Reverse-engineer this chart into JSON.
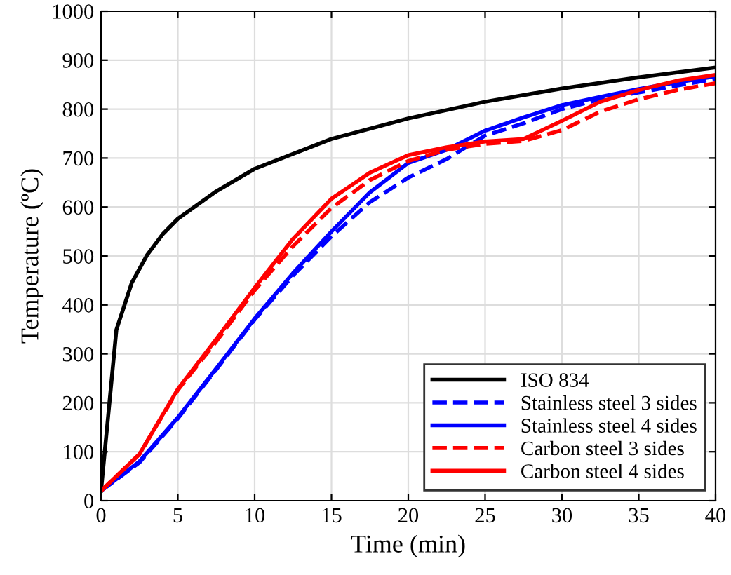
{
  "chart_data": {
    "type": "line",
    "xlabel": "Time (min)",
    "ylabel": "Temperature (ºC)",
    "xlim": [
      0,
      40
    ],
    "ylim": [
      0,
      1000
    ],
    "xticks": [
      0,
      5,
      10,
      15,
      20,
      25,
      30,
      35,
      40
    ],
    "yticks": [
      0,
      100,
      200,
      300,
      400,
      500,
      600,
      700,
      800,
      900,
      1000
    ],
    "grid": true,
    "legend": "bottom right",
    "marker": "none",
    "series": [
      {
        "name": "ISO 834",
        "color": "#000000",
        "line_style": "solid",
        "x": [
          0,
          1,
          2,
          3,
          4,
          5,
          7.5,
          10,
          15,
          20,
          25,
          30,
          35,
          40
        ],
        "values": [
          20,
          349,
          445,
          502,
          544,
          576,
          632,
          678,
          739,
          781,
          815,
          842,
          865,
          885
        ]
      },
      {
        "name": "Stainless steel 3 sides",
        "color": "#0000ff",
        "line_style": "dashed",
        "x": [
          0,
          2.5,
          5,
          7.5,
          10,
          12.5,
          15,
          17.5,
          20,
          22.5,
          25,
          27.5,
          30,
          32.5,
          35,
          37.5,
          40
        ],
        "values": [
          20,
          78,
          168,
          268,
          370,
          460,
          540,
          610,
          660,
          698,
          746,
          771,
          800,
          820,
          834,
          848,
          862
        ]
      },
      {
        "name": "Stainless steel 4 sides",
        "color": "#0000ff",
        "line_style": "solid",
        "x": [
          0,
          2.5,
          5,
          7.5,
          10,
          12.5,
          15,
          17.5,
          20,
          22.5,
          25,
          27.5,
          30,
          32.5,
          35,
          37.5,
          40
        ],
        "values": [
          20,
          80,
          170,
          270,
          372,
          465,
          550,
          630,
          690,
          717,
          756,
          783,
          808,
          825,
          841,
          855,
          867
        ]
      },
      {
        "name": "Carbon steel 3 sides",
        "color": "#ff0000",
        "line_style": "dashed",
        "x": [
          0,
          2.5,
          5,
          7.5,
          10,
          12.5,
          15,
          17.5,
          20,
          22.5,
          25,
          27.5,
          30,
          32.5,
          35,
          37.5,
          40
        ],
        "values": [
          20,
          95,
          226,
          325,
          430,
          520,
          598,
          655,
          694,
          717,
          729,
          735,
          757,
          795,
          820,
          839,
          853
        ]
      },
      {
        "name": "Carbon steel 4 sides",
        "color": "#ff0000",
        "line_style": "solid",
        "x": [
          0,
          2.5,
          5,
          7.5,
          10,
          12.5,
          15,
          17.5,
          20,
          22.5,
          25,
          27.5,
          30,
          32.5,
          35,
          37.5,
          40
        ],
        "values": [
          20,
          95,
          228,
          330,
          435,
          535,
          617,
          670,
          706,
          722,
          734,
          739,
          776,
          815,
          839,
          858,
          870
        ]
      }
    ]
  }
}
